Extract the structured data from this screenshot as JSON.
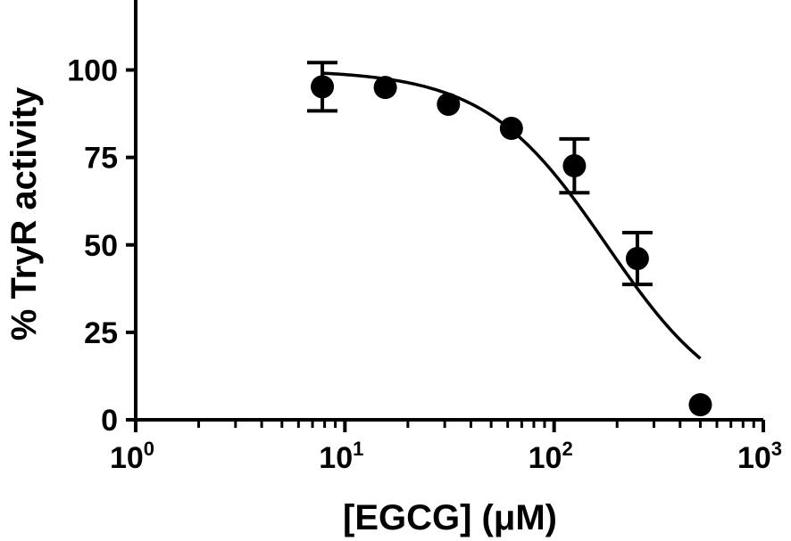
{
  "chart_data": {
    "type": "scatter",
    "xlabel": "[EGCG] (μM)",
    "ylabel": "% TryR activity",
    "x_scale": "log",
    "xlim": [
      1,
      1000
    ],
    "ylim": [
      0,
      120
    ],
    "x_ticks": [
      {
        "value": 1,
        "base": "10",
        "exp": "0"
      },
      {
        "value": 10,
        "base": "10",
        "exp": "1"
      },
      {
        "value": 100,
        "base": "10",
        "exp": "2"
      },
      {
        "value": 1000,
        "base": "10",
        "exp": "3"
      }
    ],
    "y_ticks": [
      {
        "value": 0,
        "label": "0"
      },
      {
        "value": 25,
        "label": "25"
      },
      {
        "value": 50,
        "label": "50"
      },
      {
        "value": 75,
        "label": "75"
      },
      {
        "value": 100,
        "label": "100"
      }
    ],
    "grid": false,
    "series": [
      {
        "points": [
          {
            "x": 7.8,
            "y": 95.2,
            "err": 6.9
          },
          {
            "x": 15.6,
            "y": 95.0
          },
          {
            "x": 31.25,
            "y": 90.2
          },
          {
            "x": 62.5,
            "y": 83.3
          },
          {
            "x": 125,
            "y": 72.6,
            "err": 7.7
          },
          {
            "x": 250,
            "y": 46.1,
            "err": 7.4
          },
          {
            "x": 500,
            "y": 4.3
          }
        ]
      }
    ],
    "fit_curve": {
      "model": "sigmoidal dose-response",
      "top": 100,
      "bottom": 0,
      "ic50": 178,
      "hill_slope": 1.5,
      "x_range": [
        7.8,
        500
      ]
    }
  }
}
